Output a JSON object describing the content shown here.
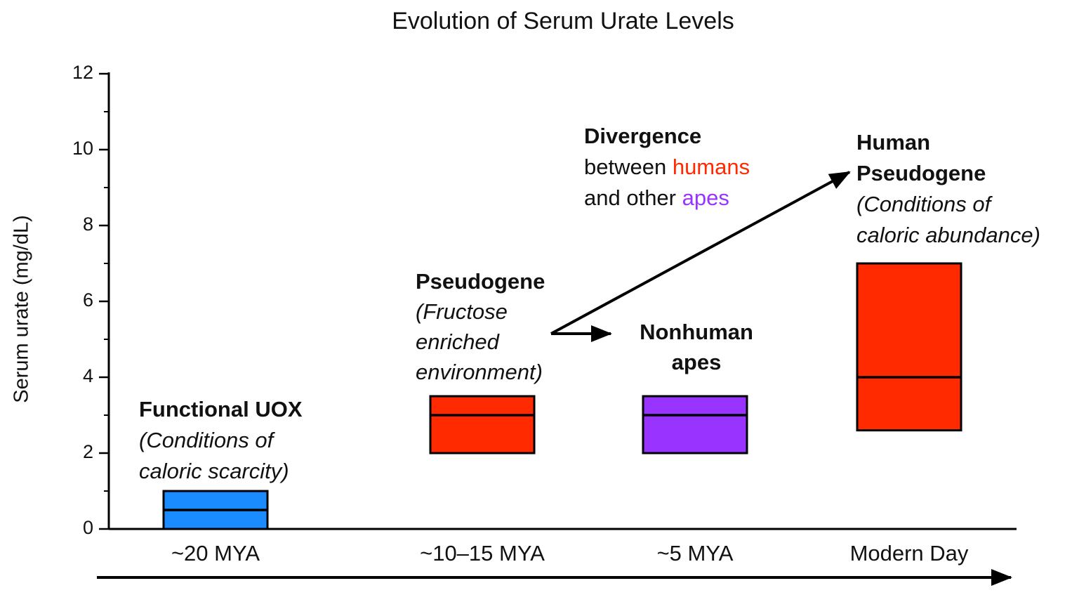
{
  "chart_data": {
    "type": "range_box",
    "title": "Evolution of Serum Urate Levels",
    "y_label": "Serum urate (mg/dL)",
    "categories": [
      "~20 MYA",
      "~10–15 MYA",
      "~5 MYA",
      "Modern Day"
    ],
    "low": [
      0,
      2,
      2,
      2.6
    ],
    "high": [
      1,
      3.5,
      3.5,
      7
    ],
    "median": [
      0.5,
      3,
      3,
      4
    ],
    "colors": [
      "#1a8cff",
      "#ff2a00",
      "#9933ff",
      "#ff2a00"
    ],
    "ylim": [
      0,
      12
    ],
    "yticks": [
      0,
      2,
      4,
      6,
      8,
      10,
      12
    ],
    "minor_step": 1,
    "annotations": [
      {
        "lines": [
          [
            {
              "text": "Functional UOX",
              "bold": true
            }
          ],
          [
            {
              "text": "(Conditions of",
              "italic": true
            }
          ],
          [
            {
              "text": "caloric scarcity)",
              "italic": true
            }
          ]
        ]
      },
      {
        "lines": [
          [
            {
              "text": "Pseudogene",
              "bold": true
            }
          ],
          [
            {
              "text": "(Fructose",
              "italic": true
            }
          ],
          [
            {
              "text": "enriched",
              "italic": true
            }
          ],
          [
            {
              "text": "environment)",
              "italic": true
            }
          ]
        ]
      },
      {
        "lines": [
          [
            {
              "text": "Nonhuman",
              "bold": true
            }
          ],
          [
            {
              "text": "apes",
              "bold": true
            }
          ]
        ]
      },
      {
        "lines": [
          [
            {
              "text": "Divergence",
              "bold": true
            }
          ],
          [
            {
              "text": "between "
            },
            {
              "text": "humans",
              "color": "#ff2a00"
            }
          ],
          [
            {
              "text": "and other "
            },
            {
              "text": "apes",
              "color": "#9933ff"
            }
          ]
        ]
      },
      {
        "lines": [
          [
            {
              "text": "Human",
              "bold": true
            }
          ],
          [
            {
              "text": "Pseudogene",
              "bold": true
            }
          ],
          [
            {
              "text": "(Conditions of",
              "italic": true
            }
          ],
          [
            {
              "text": "caloric abundance)",
              "italic": true
            }
          ]
        ]
      }
    ]
  }
}
